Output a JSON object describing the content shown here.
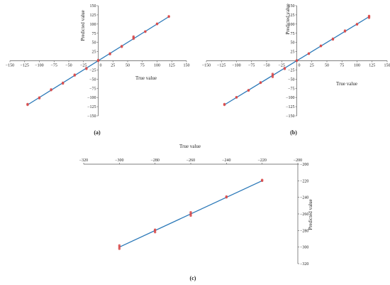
{
  "chart_data": [
    {
      "type": "scatter",
      "panel_label": "(a)",
      "xlabel": "True value",
      "ylabel": "Predicted value",
      "xlim": [
        -150,
        150
      ],
      "ylim": [
        -150,
        150
      ],
      "xticks": [
        -150,
        -125,
        -100,
        -75,
        -50,
        -25,
        0,
        25,
        50,
        75,
        100,
        125,
        150
      ],
      "yticks": [
        -150,
        -125,
        -100,
        -75,
        -50,
        -25,
        0,
        25,
        50,
        75,
        100,
        125,
        150
      ],
      "fit_line": [
        [
          -120,
          -120
        ],
        [
          120,
          120
        ]
      ],
      "points": [
        [
          -120,
          -120
        ],
        [
          -120,
          -118
        ],
        [
          -100,
          -100
        ],
        [
          -100,
          -102
        ],
        [
          -80,
          -80
        ],
        [
          -80,
          -78
        ],
        [
          -60,
          -60
        ],
        [
          -60,
          -62
        ],
        [
          -40,
          -40
        ],
        [
          -40,
          -38
        ],
        [
          -20,
          -20
        ],
        [
          -20,
          -22
        ],
        [
          0,
          0
        ],
        [
          0,
          2
        ],
        [
          20,
          20
        ],
        [
          20,
          18
        ],
        [
          40,
          40
        ],
        [
          40,
          38
        ],
        [
          60,
          60
        ],
        [
          60,
          66
        ],
        [
          60,
          63
        ],
        [
          80,
          80
        ],
        [
          80,
          79
        ],
        [
          100,
          100
        ],
        [
          100,
          101
        ],
        [
          120,
          120
        ],
        [
          120,
          121
        ]
      ],
      "colors": {
        "line": "#2a78b8",
        "point": "#d94a4a"
      },
      "grid": false
    },
    {
      "type": "scatter",
      "panel_label": "(b)",
      "xlabel": "True value",
      "ylabel": "Predicted value",
      "xlim": [
        -150,
        150
      ],
      "ylim": [
        -150,
        150
      ],
      "xticks": [
        -150,
        -125,
        -100,
        -75,
        -50,
        -25,
        0,
        25,
        50,
        75,
        100,
        125,
        150
      ],
      "yticks": [
        -150,
        -125,
        -100,
        -75,
        -50,
        -25,
        0,
        25,
        50,
        75,
        100,
        125,
        150
      ],
      "fit_line": [
        [
          -120,
          -120
        ],
        [
          120,
          120
        ]
      ],
      "points": [
        [
          -120,
          -120
        ],
        [
          -120,
          -118
        ],
        [
          -100,
          -100
        ],
        [
          -100,
          -99
        ],
        [
          -80,
          -80
        ],
        [
          -80,
          -81
        ],
        [
          -60,
          -60
        ],
        [
          -60,
          -59
        ],
        [
          -40,
          -40
        ],
        [
          -40,
          -44
        ],
        [
          -40,
          -36
        ],
        [
          -20,
          -20
        ],
        [
          -20,
          -22
        ],
        [
          0,
          0
        ],
        [
          0,
          1
        ],
        [
          20,
          20
        ],
        [
          20,
          19
        ],
        [
          40,
          40
        ],
        [
          40,
          41
        ],
        [
          60,
          60
        ],
        [
          60,
          58
        ],
        [
          80,
          80
        ],
        [
          80,
          82
        ],
        [
          100,
          100
        ],
        [
          100,
          99
        ],
        [
          120,
          120
        ],
        [
          120,
          117
        ],
        [
          120,
          122
        ]
      ],
      "colors": {
        "line": "#2a78b8",
        "point": "#d94a4a"
      },
      "grid": false
    },
    {
      "type": "scatter",
      "panel_label": "(c)",
      "xlabel": "True value",
      "ylabel": "Predicted value",
      "xlim": [
        -320,
        -200
      ],
      "ylim": [
        -320,
        -200
      ],
      "xticks": [
        -320,
        -300,
        -280,
        -260,
        -240,
        -220,
        -200
      ],
      "yticks": [
        -320,
        -300,
        -280,
        -260,
        -240,
        -220,
        -200
      ],
      "fit_line": [
        [
          -300,
          -300
        ],
        [
          -220,
          -220
        ]
      ],
      "points": [
        [
          -300,
          -300
        ],
        [
          -300,
          -298
        ],
        [
          -300,
          -302
        ],
        [
          -280,
          -280
        ],
        [
          -280,
          -282
        ],
        [
          -280,
          -279
        ],
        [
          -260,
          -260
        ],
        [
          -260,
          -258
        ],
        [
          -260,
          -262
        ],
        [
          -240,
          -240
        ],
        [
          -240,
          -239
        ],
        [
          -220,
          -220
        ],
        [
          -220,
          -219
        ]
      ],
      "colors": {
        "line": "#2a78b8",
        "point": "#d94a4a"
      },
      "grid": false
    }
  ]
}
